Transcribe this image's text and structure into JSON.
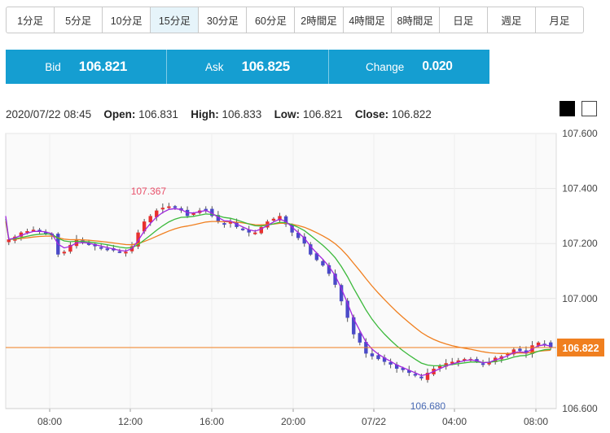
{
  "timeframes": {
    "items": [
      "1分足",
      "5分足",
      "10分足",
      "15分足",
      "30分足",
      "60分足",
      "2時間足",
      "4時間足",
      "8時間足",
      "日足",
      "週足",
      "月足"
    ],
    "active": "15分足"
  },
  "quote": {
    "bid_label": "Bid",
    "bid_value": "106.821",
    "ask_label": "Ask",
    "ask_value": "106.825",
    "change_label": "Change",
    "change_value": "0.020"
  },
  "info": {
    "datetime": "2020/07/22 08:45",
    "open_label": "Open:",
    "open": "106.831",
    "high_label": "High:",
    "high": "106.833",
    "low_label": "Low:",
    "low": "106.821",
    "close_label": "Close:",
    "close": "106.822"
  },
  "chart_data": {
    "type": "candlestick",
    "y_ticks": [
      "107.600",
      "107.400",
      "107.200",
      "107.000",
      "106.600"
    ],
    "y_range": [
      106.6,
      107.6
    ],
    "x_ticks": [
      "08:00",
      "12:00",
      "16:00",
      "20:00",
      "07/22",
      "04:00",
      "08:00"
    ],
    "current_price_label": "106.822",
    "high_annotation": "107.367",
    "low_annotation": "106.680",
    "colors": {
      "up": "#e8302e",
      "down": "#4a4ac8",
      "ma_short": "#a126e0",
      "ma_mid": "#3cb93c",
      "ma_long": "#f07f1f",
      "price_line": "#f07f1f",
      "price_tag_bg": "#f07f1f",
      "high_text": "#e8506a",
      "low_text": "#4a6bb5"
    },
    "closes": [
      107.215,
      107.225,
      107.24,
      107.245,
      107.25,
      107.245,
      107.24,
      107.23,
      107.16,
      107.17,
      107.195,
      107.215,
      107.205,
      107.2,
      107.19,
      107.185,
      107.18,
      107.175,
      107.17,
      107.17,
      107.19,
      107.24,
      107.28,
      107.3,
      107.32,
      107.33,
      107.335,
      107.33,
      107.32,
      107.3,
      107.31,
      107.32,
      107.325,
      107.3,
      107.28,
      107.27,
      107.28,
      107.26,
      107.25,
      107.24,
      107.24,
      107.26,
      107.28,
      107.29,
      107.3,
      107.27,
      107.24,
      107.22,
      107.2,
      107.16,
      107.14,
      107.12,
      107.09,
      107.05,
      106.99,
      106.93,
      106.87,
      106.84,
      106.8,
      106.79,
      106.78,
      106.77,
      106.76,
      106.745,
      106.74,
      106.73,
      106.72,
      106.71,
      106.73,
      106.745,
      106.755,
      106.765,
      106.77,
      106.775,
      106.78,
      106.78,
      106.77,
      106.76,
      106.77,
      106.785,
      106.79,
      106.8,
      106.815,
      106.81,
      106.8,
      106.83,
      106.84,
      106.835,
      106.822
    ]
  }
}
